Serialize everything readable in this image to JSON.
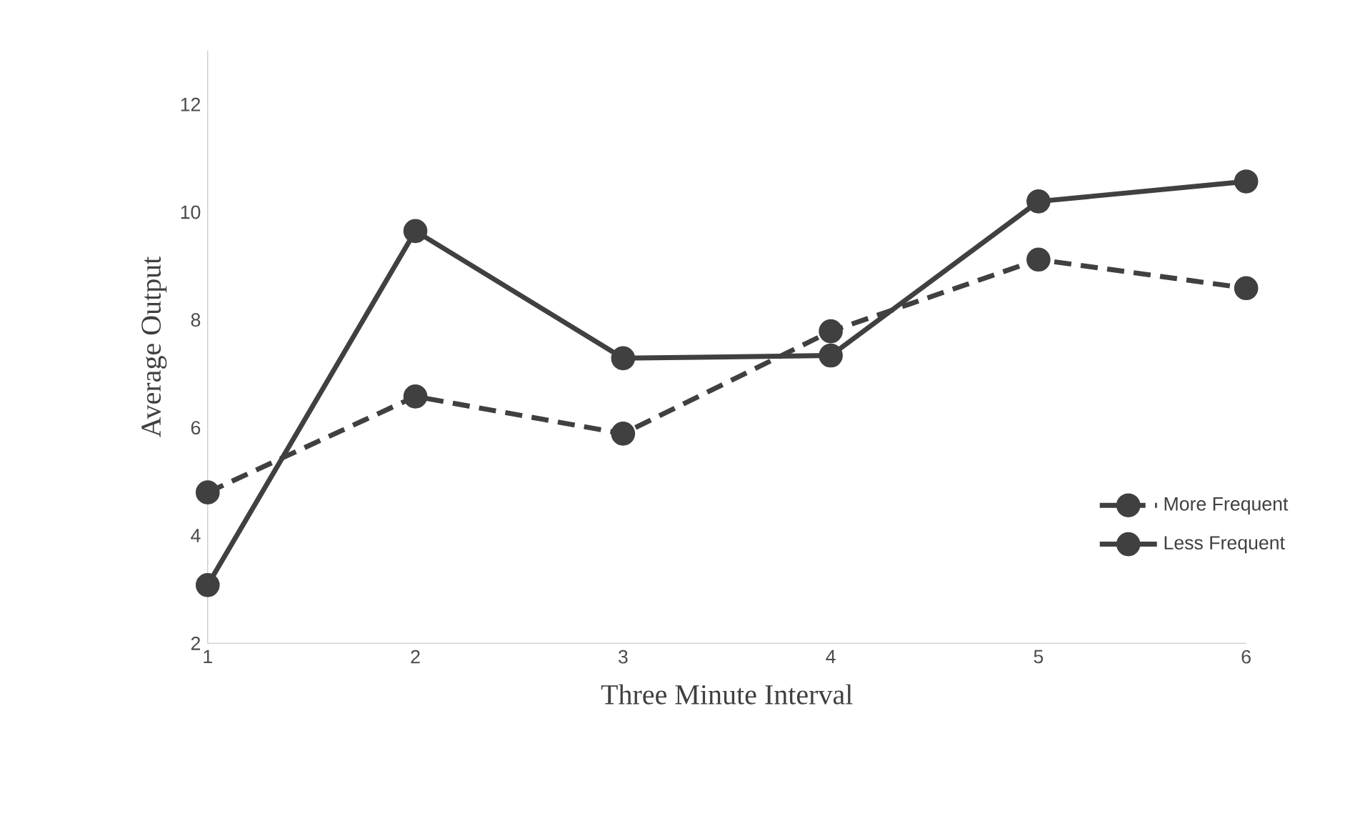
{
  "chart_data": {
    "type": "line",
    "xlabel": "Three Minute Interval",
    "ylabel": "Average Output",
    "categories": [
      "1",
      "2",
      "3",
      "4",
      "5",
      "6"
    ],
    "ylim": [
      2,
      13
    ],
    "yticks": [
      2,
      4,
      6,
      8,
      10,
      12
    ],
    "grid": false,
    "legend": "right",
    "marker": "circle",
    "series": [
      {
        "name": "More Frequent",
        "color": "#404040",
        "line_style": "dashed",
        "values": [
          4.8,
          6.58,
          5.89,
          7.79,
          9.12,
          8.59
        ]
      },
      {
        "name": "Less Frequent",
        "color": "#404040",
        "line_style": "solid",
        "values": [
          3.08,
          9.65,
          7.29,
          7.34,
          10.2,
          10.57
        ]
      }
    ]
  }
}
